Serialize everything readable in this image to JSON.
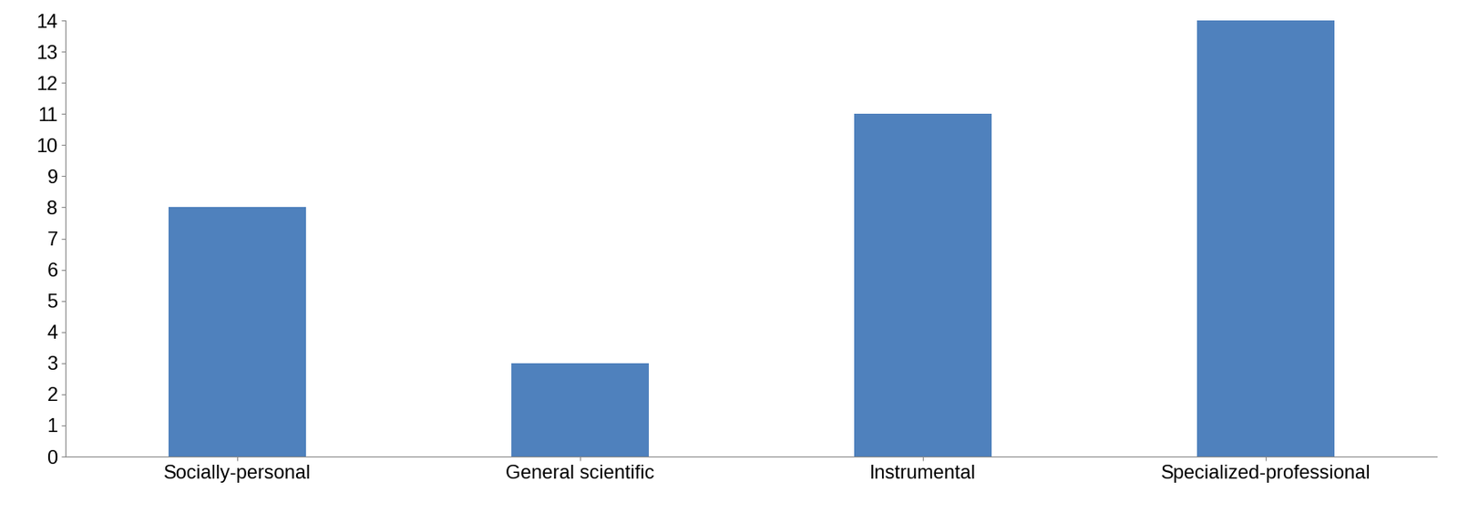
{
  "chart_data": {
    "type": "bar",
    "categories": [
      "Socially-personal",
      "General scientific",
      "Instrumental",
      "Specialized-professional"
    ],
    "values": [
      8,
      3,
      11,
      14
    ],
    "color": "#4f81bd",
    "ylim": [
      0,
      14
    ],
    "yticks": [
      0,
      1,
      2,
      3,
      4,
      5,
      6,
      7,
      8,
      9,
      10,
      11,
      12,
      13,
      14
    ],
    "grid": false
  }
}
